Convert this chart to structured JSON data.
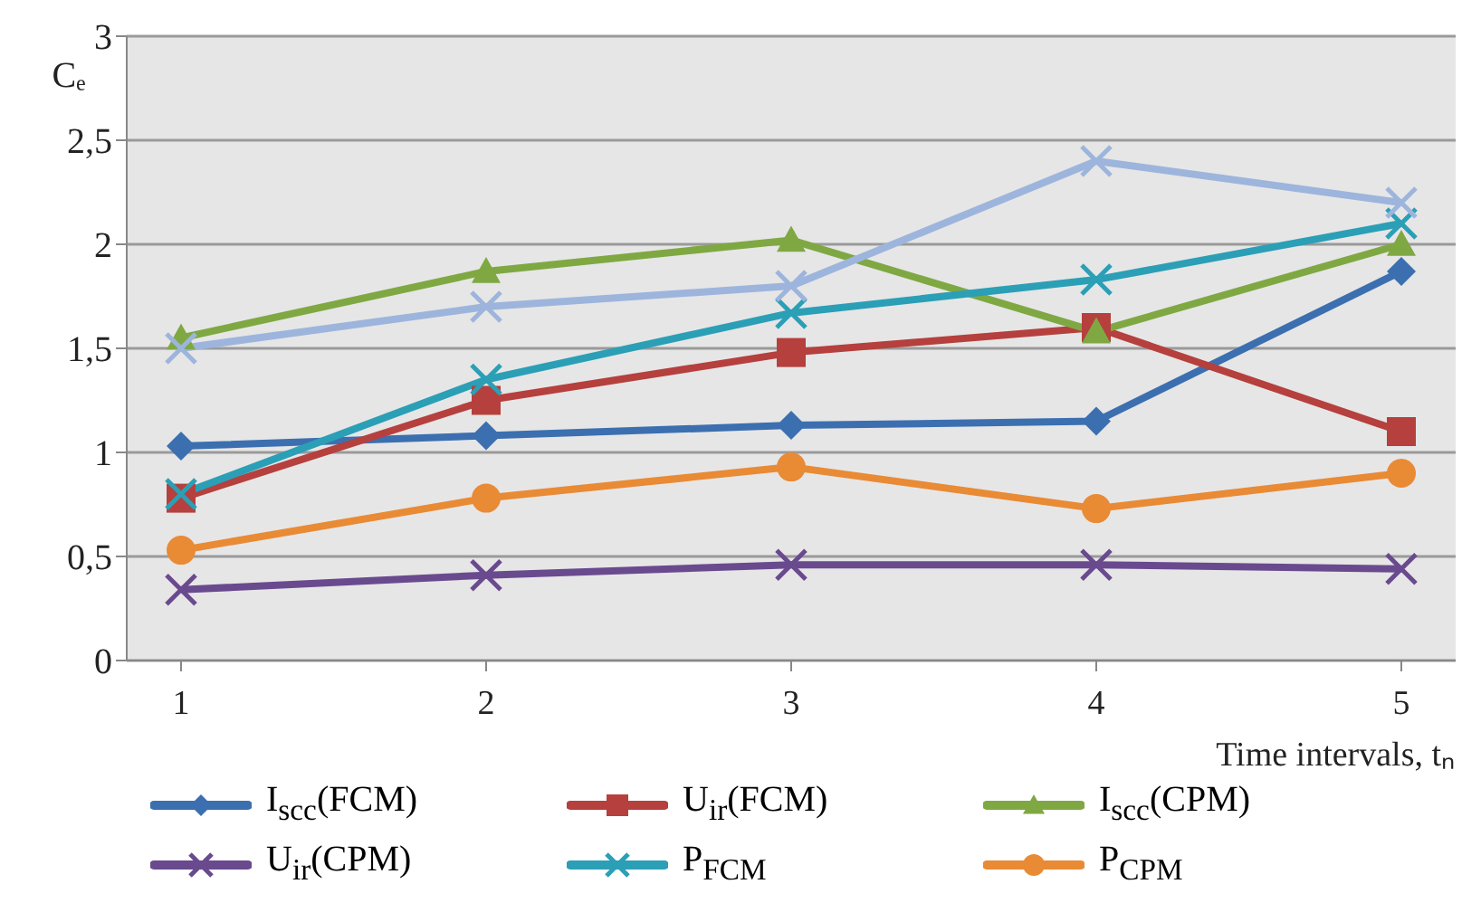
{
  "chart_data": {
    "type": "line",
    "ylabel": "Cₑ",
    "xlabel": "Time intervals, tₙ",
    "categories": [
      "1",
      "2",
      "3",
      "4",
      "5"
    ],
    "ylim": [
      0,
      3
    ],
    "yticks": [
      0,
      {
        "value": 0.5,
        "label": "0,5"
      },
      1,
      {
        "value": 1.5,
        "label": "1,5"
      },
      2,
      {
        "value": 2.5,
        "label": "2,5"
      },
      3
    ],
    "grid": "y",
    "legend": "bottom",
    "series": [
      {
        "name": "I$_{scc}$(FCM)",
        "color": "#3c6fb0",
        "marker": "diamond",
        "values": [
          1.03,
          1.08,
          1.13,
          1.15,
          1.87
        ]
      },
      {
        "name": "U$_{ir}$(FCM)",
        "color": "#b5403d",
        "marker": "square",
        "values": [
          0.78,
          1.25,
          1.48,
          1.6,
          1.1
        ]
      },
      {
        "name": "I$_{scc}$(CPM)",
        "color": "#7fa843",
        "marker": "triangle",
        "values": [
          1.55,
          1.87,
          2.02,
          1.58,
          2.0
        ]
      },
      {
        "name": "U$_{ir}$(CPM)",
        "color": "#6a4a8e",
        "marker": "cross",
        "values": [
          0.34,
          0.41,
          0.46,
          0.46,
          0.44
        ]
      },
      {
        "name": "P$_{FCM}$",
        "color": "#2b9fb6",
        "marker": "cross",
        "values": [
          0.8,
          1.35,
          1.67,
          1.83,
          2.1
        ]
      },
      {
        "name": "P$_{CPM}$",
        "color": "#e98a35",
        "marker": "circle",
        "values": [
          0.53,
          0.78,
          0.93,
          0.73,
          0.9
        ]
      },
      {
        "color": "#9db5dc",
        "marker": "cross",
        "values": [
          1.5,
          1.7,
          1.8,
          2.4,
          2.2
        ]
      }
    ]
  }
}
